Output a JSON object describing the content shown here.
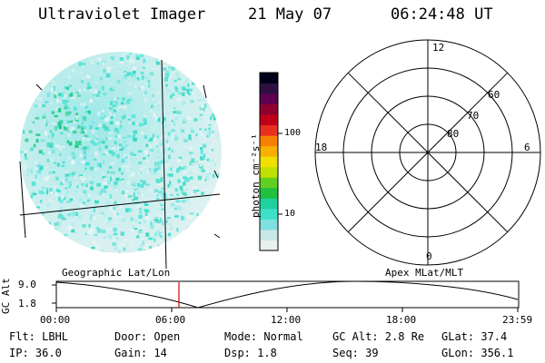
{
  "header": {
    "title": "Ultraviolet Imager",
    "date": "21 May 07",
    "time": "06:24:48 UT"
  },
  "colorbar": {
    "label": "photon cm⁻²s⁻¹",
    "ticks": [
      "100",
      "10"
    ],
    "colors": [
      "#e8f0f0",
      "#c8e8e8",
      "#80e0e0",
      "#40e0c8",
      "#20d0a0",
      "#20c040",
      "#60d020",
      "#c0e000",
      "#f0e000",
      "#f8b000",
      "#f88000",
      "#e83020",
      "#c00018",
      "#900030",
      "#600050",
      "#301040",
      "#000018"
    ]
  },
  "polar_grid": {
    "labels": {
      "top": "12",
      "bottom": "0",
      "left": "18",
      "right": "6"
    },
    "lat_labels": [
      "60",
      "70",
      "80"
    ]
  },
  "timeline": {
    "ylabel": "GC Alt",
    "yticks": [
      "9.0",
      "1.8"
    ],
    "left_caption": "Geographic Lat/Lon",
    "right_caption": "Apex MLat/MLT",
    "xticks": [
      "00:00",
      "06:00",
      "12:00",
      "18:00",
      "23:59"
    ],
    "current_marker_color": "#e00000"
  },
  "status": {
    "row1": [
      {
        "key": "flt",
        "text": "Flt: LBHL"
      },
      {
        "key": "door",
        "text": "Door: Open"
      },
      {
        "key": "mode",
        "text": "Mode: Normal"
      },
      {
        "key": "gcalt",
        "text": "GC Alt: 2.8 Re"
      },
      {
        "key": "glat",
        "text": "GLat:  37.4"
      }
    ],
    "row2": [
      {
        "key": "ip",
        "text": "IP: 36.0"
      },
      {
        "key": "gain",
        "text": "Gain: 14"
      },
      {
        "key": "dsp",
        "text": "Dsp:   1.8"
      },
      {
        "key": "seq",
        "text": "Seq: 39"
      },
      {
        "key": "glon",
        "text": "GLon: 356.1"
      }
    ]
  }
}
